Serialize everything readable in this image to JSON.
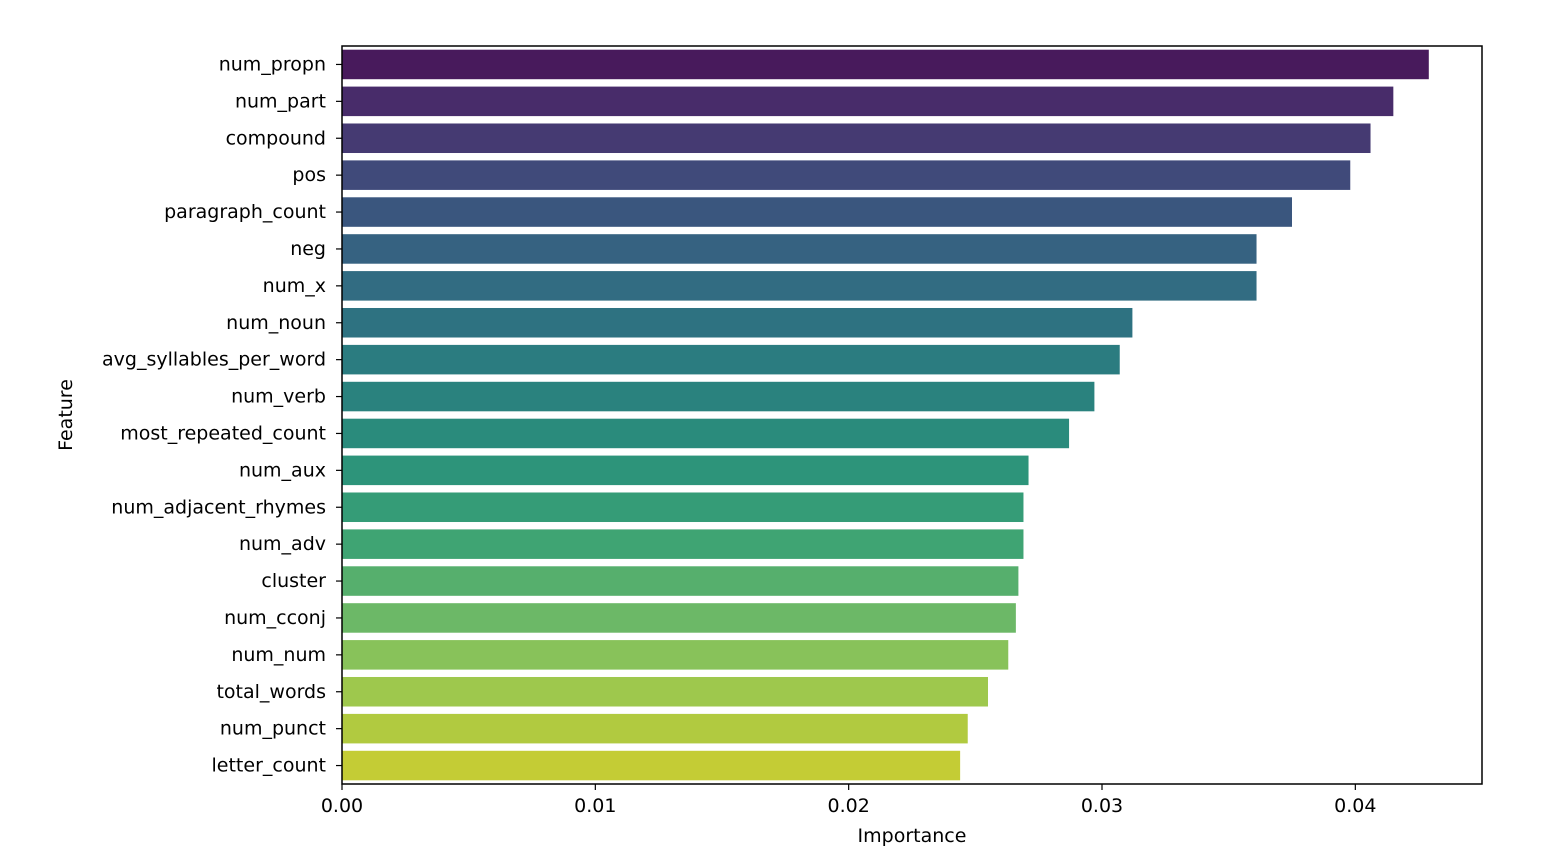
{
  "chart_data": {
    "type": "bar",
    "orientation": "horizontal",
    "xlabel": "Importance",
    "ylabel": "Feature",
    "xlim": [
      0,
      0.045
    ],
    "x_ticks": [
      0.0,
      0.01,
      0.02,
      0.03,
      0.04
    ],
    "x_tick_labels": [
      "0.00",
      "0.01",
      "0.02",
      "0.03",
      "0.04"
    ],
    "grid": false,
    "legend": "none",
    "palette": "viridis",
    "categories": [
      "num_propn",
      "num_part",
      "compound",
      "pos",
      "paragraph_count",
      "neg",
      "num_x",
      "num_noun",
      "avg_syllables_per_word",
      "num_verb",
      "most_repeated_count",
      "num_aux",
      "num_adjacent_rhymes",
      "num_adv",
      "cluster",
      "num_cconj",
      "num_num",
      "total_words",
      "num_punct",
      "letter_count"
    ],
    "values": [
      0.0429,
      0.0415,
      0.0406,
      0.0398,
      0.0375,
      0.0361,
      0.0361,
      0.0312,
      0.0307,
      0.0297,
      0.0287,
      0.0271,
      0.0269,
      0.0269,
      0.0267,
      0.0266,
      0.0263,
      0.0255,
      0.0247,
      0.0244
    ],
    "colors": [
      "#481a5c",
      "#482c6a",
      "#453a72",
      "#404a7a",
      "#3a567e",
      "#366281",
      "#326c82",
      "#2e7281",
      "#2b7c80",
      "#2a827e",
      "#2a8b7c",
      "#2d947a",
      "#359c77",
      "#3fa473",
      "#56af6d",
      "#6cb867",
      "#88c25a",
      "#9ec84d",
      "#b1ca40",
      "#c4cc35"
    ]
  }
}
